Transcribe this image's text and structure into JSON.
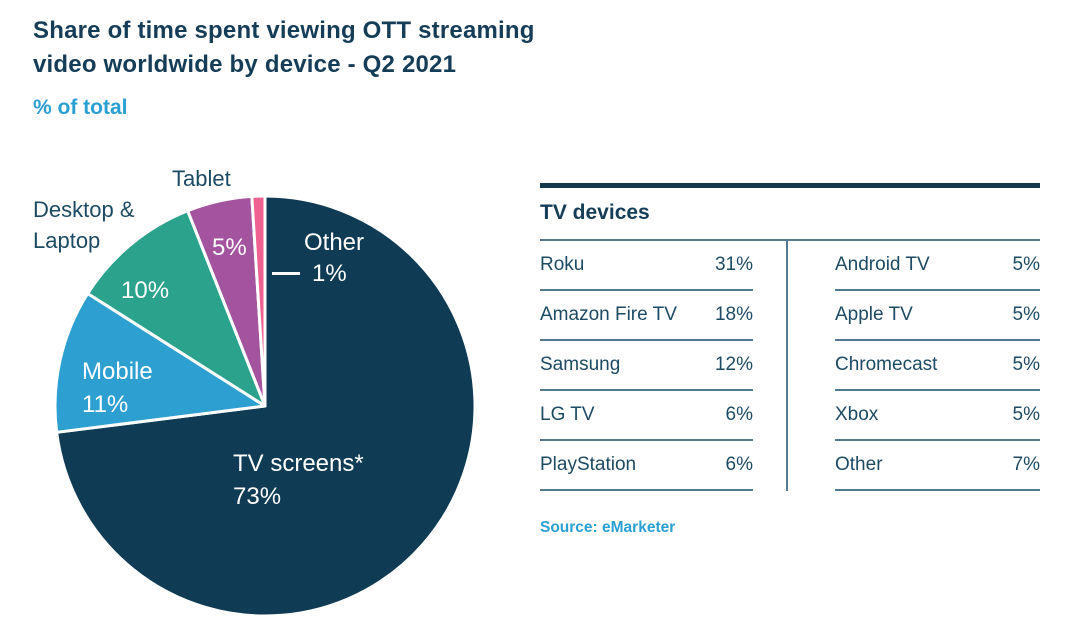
{
  "header": {
    "title_lines": [
      "Share of time spent viewing OTT streaming",
      "video worldwide by device - Q2 2021"
    ],
    "subtitle": "% of total"
  },
  "chart_data": {
    "type": "pie",
    "title": "Share of time spent viewing OTT streaming video worldwide by device - Q2 2021",
    "unit": "% of total",
    "categories": [
      "TV screens*",
      "Mobile",
      "Desktop & Laptop",
      "Tablet",
      "Other"
    ],
    "values": [
      73,
      11,
      10,
      5,
      1
    ],
    "pct": [
      "73%",
      "11%",
      "10%",
      "5%",
      "1%"
    ],
    "colors": [
      "#0f3b54",
      "#2d9fd0",
      "#2ba28b",
      "#a4539e",
      "#ee6190"
    ],
    "start_angle_deg": 0,
    "direction": "clockwise",
    "gap_stroke": "#ffffff"
  },
  "table": {
    "title": "TV devices",
    "columns": [
      {
        "rows": [
          {
            "label": "Roku",
            "value": "31%"
          },
          {
            "label": "Amazon Fire TV",
            "value": "18%"
          },
          {
            "label": "Samsung",
            "value": "12%"
          },
          {
            "label": "LG TV",
            "value": "6%"
          },
          {
            "label": "PlayStation",
            "value": "6%"
          }
        ]
      },
      {
        "rows": [
          {
            "label": "Android TV",
            "value": "5%"
          },
          {
            "label": "Apple TV",
            "value": "5%"
          },
          {
            "label": "Chromecast",
            "value": "5%"
          },
          {
            "label": "Xbox",
            "value": "5%"
          },
          {
            "label": "Other",
            "value": "7%"
          }
        ]
      }
    ]
  },
  "source": "Source: eMarketer",
  "colors": {
    "ink": "#153d57",
    "label_ink": "#1d4a63",
    "accent": "#2aa0d2",
    "table_line": "#54788e",
    "table_bar": "#14384e"
  }
}
